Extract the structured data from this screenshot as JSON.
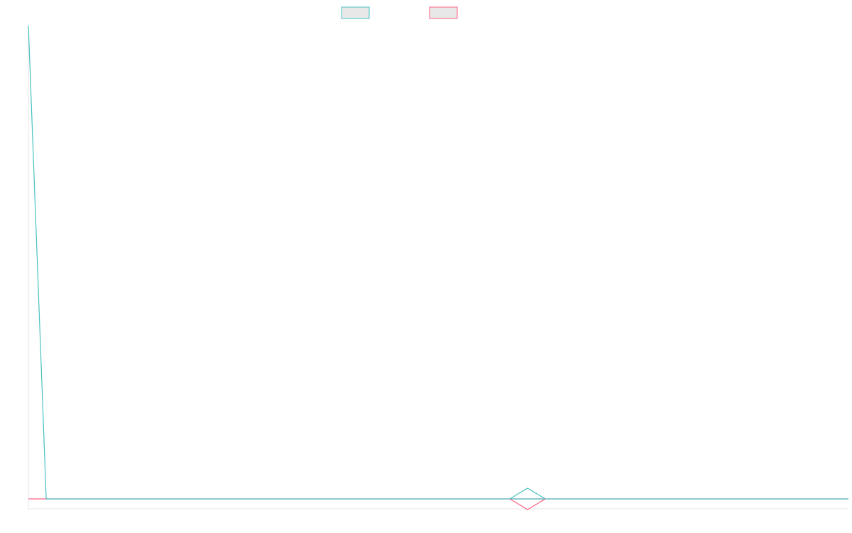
{
  "chart_data": {
    "type": "line",
    "title": "",
    "xlabel": "",
    "ylabel": "",
    "x": [
      0,
      1,
      2,
      3,
      4,
      5,
      6,
      7,
      8,
      9,
      10,
      11,
      12,
      13,
      14,
      15,
      16,
      17,
      18,
      19,
      20,
      21,
      22,
      23,
      24,
      25,
      26,
      27,
      28,
      29,
      30,
      31,
      32,
      33,
      34,
      35,
      36,
      37,
      38,
      39,
      40,
      41,
      42,
      43,
      44,
      45,
      46
    ],
    "xlim": [
      0,
      46
    ],
    "ylim": [
      0,
      1
    ],
    "grid": false,
    "legend_position": "top-center",
    "series": [
      {
        "name": "",
        "color": "#4bc0c0",
        "fill": "#e8e8e8",
        "values": [
          1,
          0,
          0,
          0,
          0,
          0,
          0,
          0,
          0,
          0,
          0,
          0,
          0,
          0,
          0,
          0,
          0,
          0,
          0,
          0,
          0,
          0,
          0,
          0,
          0,
          0,
          0,
          0,
          0,
          0,
          0,
          0,
          0,
          0,
          0,
          0,
          0,
          0,
          0,
          0,
          0,
          0,
          0,
          0,
          0,
          0,
          0
        ]
      },
      {
        "name": "",
        "color": "#ff6384",
        "fill": "#e8e8e8",
        "values": [
          0,
          0,
          0,
          0,
          0,
          0,
          0,
          0,
          0,
          0,
          0,
          0,
          0,
          0,
          0,
          0,
          0,
          0,
          0,
          0,
          0,
          0,
          0,
          0,
          0,
          0,
          0,
          0,
          0,
          0,
          0,
          0,
          0,
          0,
          0,
          0,
          0,
          0,
          0,
          0,
          0,
          0,
          0,
          0,
          0,
          0,
          0
        ]
      }
    ],
    "highlight_point": {
      "x": 28,
      "y": 0
    },
    "axis_color": "#e5e5e5"
  }
}
